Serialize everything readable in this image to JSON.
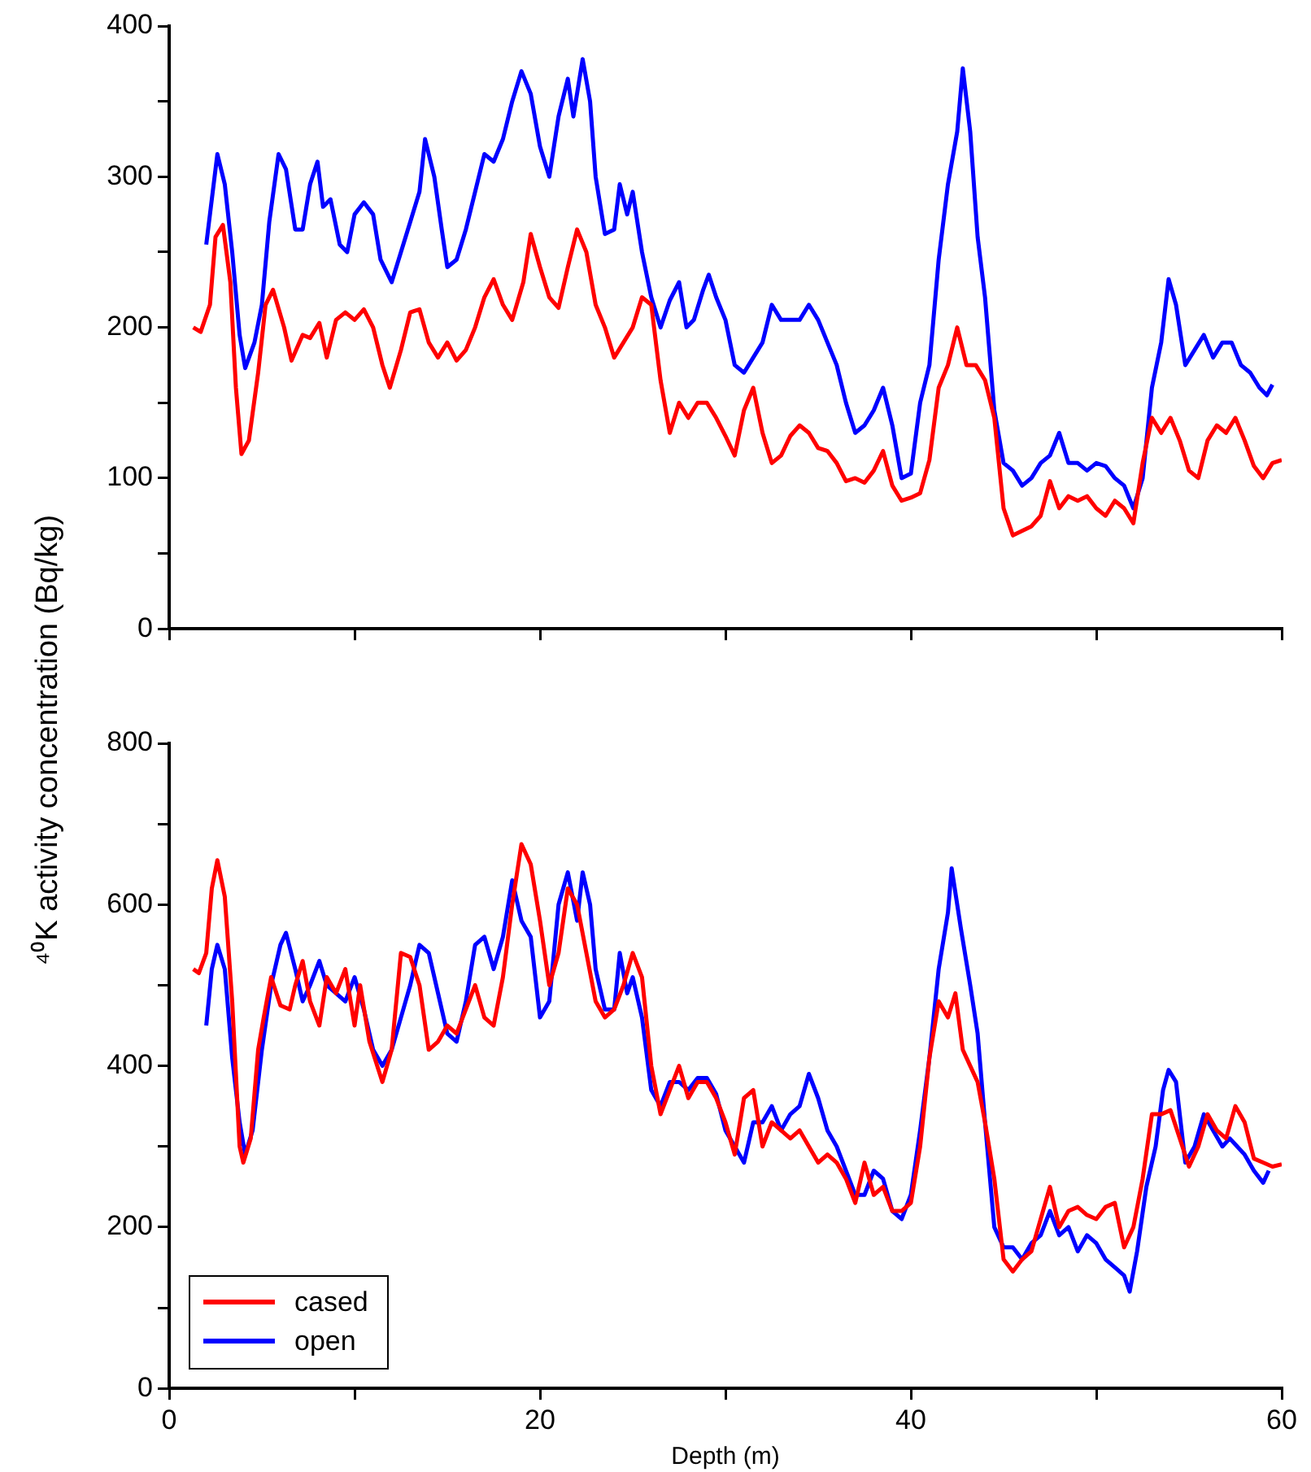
{
  "chart_data": [
    {
      "type": "line",
      "ylabel": "⁴⁰K activity concentration (Bq/kg)",
      "xlim": [
        0,
        60
      ],
      "xticks": [
        {
          "value": 0,
          "label": null
        },
        {
          "value": 10,
          "label": null
        },
        {
          "value": 20,
          "label": null
        },
        {
          "value": 30,
          "label": null
        },
        {
          "value": 40,
          "label": null
        },
        {
          "value": 50,
          "label": null
        },
        {
          "value": 60,
          "label": null
        }
      ],
      "ylim": [
        0,
        400
      ],
      "yticks": [
        0,
        {
          "value": 50,
          "label": null
        },
        100,
        {
          "value": 150,
          "label": null
        },
        200,
        {
          "value": 250,
          "label": null
        },
        300,
        {
          "value": 350,
          "label": null
        },
        400
      ],
      "tick_labels": "y",
      "grid": false,
      "legend": false,
      "marker": "none",
      "line_style": "solid",
      "series": [
        {
          "color": "#ff0000",
          "x": [
            1.3,
            1.7,
            2.2,
            2.5,
            2.9,
            3.3,
            3.6,
            3.9,
            4.3,
            4.8,
            5.2,
            5.6,
            6.2,
            6.6,
            7.2,
            7.6,
            8.1,
            8.5,
            9,
            9.5,
            10,
            10.5,
            11,
            11.5,
            11.9,
            12.5,
            13,
            13.5,
            14,
            14.5,
            15,
            15.5,
            16,
            16.5,
            17,
            17.5,
            18,
            18.5,
            19.1,
            19.5,
            20,
            20.5,
            21,
            21.5,
            22,
            22.5,
            23,
            23.5,
            24,
            24.5,
            25,
            25.5,
            26,
            26.5,
            27,
            27.5,
            28,
            28.5,
            29,
            29.5,
            30,
            30.5,
            31,
            31.5,
            32,
            32.5,
            33,
            33.5,
            34,
            34.5,
            35,
            35.5,
            36,
            36.5,
            37,
            37.5,
            38,
            38.5,
            39,
            39.5,
            40,
            40.5,
            41,
            41.5,
            42,
            42.5,
            43,
            43.5,
            44,
            44.5,
            45,
            45.5,
            46,
            46.5,
            47,
            47.5,
            48,
            48.5,
            49,
            49.5,
            50,
            50.5,
            51,
            51.5,
            52,
            52.5,
            53,
            53.5,
            54,
            54.5,
            55,
            55.5,
            56,
            56.5,
            57,
            57.5,
            58,
            58.5,
            59,
            59.5,
            60
          ],
          "values": [
            200,
            197,
            215,
            260,
            268,
            230,
            160,
            116,
            125,
            170,
            215,
            225,
            200,
            178,
            195,
            193,
            203,
            180,
            205,
            210,
            205,
            212,
            200,
            175,
            160,
            185,
            210,
            212,
            190,
            180,
            190,
            178,
            185,
            200,
            220,
            232,
            215,
            205,
            230,
            262,
            240,
            220,
            213,
            240,
            265,
            250,
            215,
            200,
            180,
            190,
            200,
            220,
            215,
            165,
            130,
            150,
            140,
            150,
            150,
            140,
            128,
            115,
            145,
            160,
            130,
            110,
            115,
            128,
            135,
            130,
            120,
            118,
            110,
            98,
            100,
            97,
            105,
            118,
            95,
            85,
            87,
            90,
            112,
            160,
            175,
            200,
            175,
            175,
            165,
            140,
            80,
            62,
            65,
            68,
            75,
            98,
            80,
            88,
            85,
            88,
            80,
            75,
            85,
            80,
            70,
            110,
            140,
            130,
            140,
            125,
            105,
            100,
            125,
            135,
            130,
            140,
            125,
            108,
            100,
            110,
            112
          ]
        },
        {
          "color": "#0000ff",
          "x": [
            2,
            2.3,
            2.6,
            3,
            3.4,
            3.8,
            4.1,
            4.6,
            5,
            5.4,
            5.9,
            6.3,
            6.8,
            7.2,
            7.6,
            8,
            8.3,
            8.7,
            9.2,
            9.6,
            10,
            10.5,
            11,
            11.4,
            12,
            12.5,
            13,
            13.5,
            13.8,
            14.3,
            14.7,
            15,
            15.5,
            16,
            16.5,
            17,
            17.5,
            18,
            18.5,
            19,
            19.5,
            20,
            20.5,
            21,
            21.5,
            21.8,
            22.3,
            22.7,
            23,
            23.5,
            24,
            24.3,
            24.7,
            25,
            25.5,
            26,
            26.5,
            27,
            27.5,
            27.9,
            28.3,
            28.8,
            29.1,
            29.5,
            30,
            30.5,
            31,
            31.5,
            32,
            32.5,
            33,
            33.5,
            34,
            34.5,
            35,
            35.5,
            36,
            36.5,
            37,
            37.5,
            38,
            38.5,
            39,
            39.5,
            40,
            40.5,
            41,
            41.5,
            42,
            42.5,
            42.8,
            43.2,
            43.6,
            44,
            44.5,
            45,
            45.5,
            46,
            46.5,
            47,
            47.5,
            48,
            48.5,
            49,
            49.5,
            50,
            50.5,
            51,
            51.5,
            52,
            52.5,
            53,
            53.5,
            53.9,
            54.3,
            54.8,
            55.3,
            55.8,
            56.3,
            56.8,
            57.3,
            57.8,
            58.3,
            58.8,
            59.2,
            59.5
          ],
          "values": [
            255,
            285,
            315,
            295,
            250,
            195,
            173,
            190,
            215,
            270,
            315,
            305,
            265,
            265,
            295,
            310,
            280,
            285,
            255,
            250,
            275,
            283,
            275,
            245,
            230,
            250,
            270,
            290,
            325,
            300,
            265,
            240,
            245,
            265,
            290,
            315,
            310,
            325,
            350,
            370,
            355,
            320,
            300,
            340,
            365,
            340,
            378,
            350,
            300,
            262,
            265,
            295,
            275,
            290,
            250,
            220,
            200,
            218,
            230,
            200,
            205,
            225,
            235,
            220,
            205,
            175,
            170,
            180,
            190,
            215,
            205,
            205,
            205,
            215,
            205,
            190,
            175,
            150,
            130,
            135,
            145,
            160,
            135,
            100,
            103,
            150,
            175,
            245,
            295,
            330,
            372,
            330,
            260,
            220,
            145,
            110,
            105,
            95,
            100,
            110,
            115,
            130,
            110,
            110,
            105,
            110,
            108,
            100,
            95,
            80,
            100,
            160,
            190,
            232,
            215,
            175,
            185,
            195,
            180,
            190,
            190,
            175,
            170,
            160,
            155,
            162
          ]
        }
      ]
    },
    {
      "type": "line",
      "xlabel": "Depth (m)",
      "xlim": [
        0,
        60
      ],
      "xticks": [
        0,
        {
          "value": 10,
          "label": null
        },
        20,
        {
          "value": 30,
          "label": null
        },
        40,
        {
          "value": 50,
          "label": null
        },
        60
      ],
      "ylim": [
        0,
        800
      ],
      "yticks": [
        0,
        {
          "value": 100,
          "label": null
        },
        200,
        {
          "value": 300,
          "label": null
        },
        400,
        {
          "value": 500,
          "label": null
        },
        600,
        {
          "value": 700,
          "label": null
        },
        800
      ],
      "grid": false,
      "legend": "bottom left",
      "marker": "none",
      "line_style": "solid",
      "series": [
        {
          "name": "cased",
          "color": "#ff0000",
          "x": [
            1.3,
            1.6,
            2,
            2.3,
            2.6,
            3,
            3.4,
            3.8,
            4,
            4.4,
            4.8,
            5.1,
            5.5,
            6,
            6.5,
            6.8,
            7.2,
            7.6,
            8.1,
            8.5,
            9,
            9.5,
            10,
            10.3,
            10.8,
            11.5,
            12,
            12.5,
            13,
            13.5,
            14,
            14.5,
            15,
            15.5,
            16,
            16.5,
            17,
            17.5,
            18,
            18.5,
            19,
            19.5,
            20,
            20.5,
            21,
            21.5,
            22,
            22.5,
            23,
            23.5,
            24,
            24.5,
            25,
            25.5,
            26,
            26.5,
            27,
            27.5,
            28,
            28.5,
            29,
            29.5,
            30,
            30.5,
            31,
            31.5,
            32,
            32.5,
            33,
            33.5,
            34,
            34.5,
            35,
            35.5,
            36,
            36.5,
            37,
            37.5,
            38,
            38.5,
            39,
            39.5,
            40,
            40.5,
            41,
            41.5,
            42,
            42.4,
            42.8,
            43.2,
            43.6,
            44,
            44.5,
            45,
            45.5,
            46,
            46.5,
            47,
            47.5,
            48,
            48.5,
            49,
            49.5,
            50,
            50.5,
            51,
            51.5,
            52,
            52.5,
            53,
            53.5,
            54,
            54.5,
            55,
            55.5,
            56,
            56.5,
            57,
            57.5,
            58,
            58.5,
            59,
            59.5,
            60
          ],
          "values": [
            520,
            515,
            540,
            620,
            655,
            610,
            480,
            300,
            280,
            310,
            420,
            460,
            510,
            475,
            470,
            500,
            530,
            480,
            450,
            510,
            490,
            520,
            450,
            500,
            430,
            380,
            420,
            540,
            535,
            500,
            420,
            430,
            450,
            440,
            470,
            500,
            460,
            450,
            510,
            600,
            675,
            650,
            580,
            500,
            540,
            620,
            600,
            540,
            480,
            460,
            470,
            500,
            540,
            510,
            400,
            340,
            370,
            400,
            360,
            380,
            380,
            360,
            330,
            290,
            360,
            370,
            300,
            330,
            320,
            310,
            320,
            300,
            280,
            290,
            280,
            260,
            230,
            280,
            240,
            250,
            220,
            220,
            230,
            300,
            410,
            480,
            460,
            490,
            420,
            400,
            380,
            330,
            260,
            160,
            145,
            160,
            170,
            210,
            250,
            200,
            220,
            225,
            215,
            210,
            225,
            230,
            175,
            200,
            260,
            340,
            340,
            345,
            310,
            275,
            300,
            340,
            320,
            310,
            350,
            330,
            285,
            280,
            275,
            278
          ]
        },
        {
          "name": "open",
          "color": "#0000ff",
          "x": [
            2,
            2.3,
            2.6,
            3,
            3.4,
            3.8,
            4.1,
            4.5,
            5,
            5.5,
            6,
            6.3,
            6.8,
            7.2,
            7.6,
            8.1,
            8.5,
            9,
            9.5,
            10,
            10.5,
            11,
            11.5,
            12,
            12.5,
            13,
            13.5,
            14,
            14.5,
            15,
            15.5,
            16,
            16.5,
            17,
            17.5,
            18,
            18.5,
            19,
            19.5,
            20,
            20.5,
            21,
            21.5,
            22,
            22.3,
            22.7,
            23,
            23.5,
            24,
            24.3,
            24.7,
            25,
            25.5,
            26,
            26.5,
            27,
            27.5,
            28,
            28.5,
            29,
            29.5,
            30,
            30.5,
            31,
            31.5,
            32,
            32.5,
            33,
            33.5,
            34,
            34.5,
            35,
            35.5,
            36,
            36.5,
            37,
            37.5,
            38,
            38.5,
            39,
            39.5,
            40,
            40.5,
            41,
            41.5,
            42,
            42.2,
            42.7,
            43.2,
            43.6,
            44,
            44.5,
            45,
            45.5,
            46,
            46.5,
            47,
            47.5,
            48,
            48.5,
            49,
            49.5,
            50,
            50.5,
            51,
            51.5,
            51.8,
            52.2,
            52.7,
            53.2,
            53.6,
            53.9,
            54.3,
            54.8,
            55.3,
            55.8,
            56.3,
            56.8,
            57.2,
            57.6,
            58,
            58.5,
            59,
            59.3
          ],
          "values": [
            450,
            520,
            550,
            520,
            410,
            330,
            290,
            320,
            420,
            500,
            550,
            565,
            520,
            480,
            500,
            530,
            500,
            490,
            480,
            510,
            470,
            420,
            400,
            420,
            460,
            500,
            550,
            540,
            490,
            440,
            430,
            480,
            550,
            560,
            520,
            560,
            630,
            580,
            560,
            460,
            480,
            600,
            640,
            580,
            640,
            600,
            520,
            470,
            470,
            540,
            490,
            510,
            460,
            370,
            350,
            380,
            380,
            370,
            385,
            385,
            365,
            320,
            300,
            280,
            330,
            330,
            350,
            320,
            340,
            350,
            390,
            360,
            320,
            300,
            270,
            240,
            240,
            270,
            260,
            220,
            210,
            240,
            320,
            410,
            520,
            590,
            645,
            570,
            500,
            440,
            330,
            200,
            175,
            175,
            160,
            180,
            190,
            220,
            190,
            200,
            170,
            190,
            180,
            160,
            150,
            140,
            120,
            170,
            250,
            300,
            370,
            395,
            380,
            280,
            300,
            340,
            320,
            300,
            310,
            300,
            290,
            270,
            255,
            270
          ]
        }
      ]
    }
  ]
}
